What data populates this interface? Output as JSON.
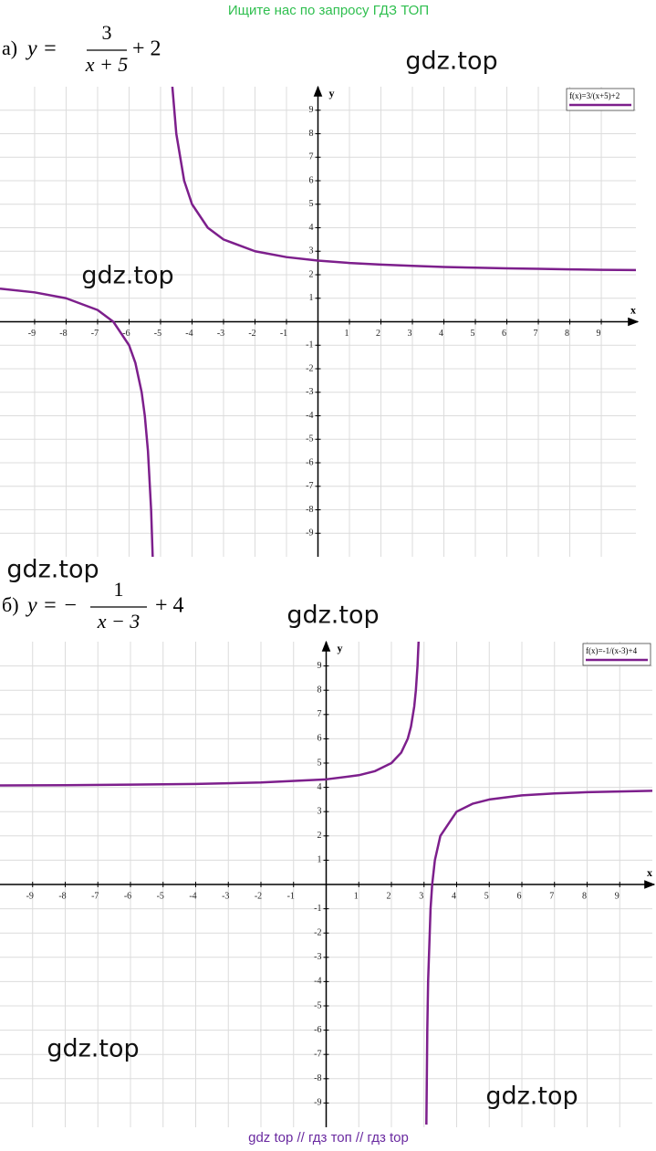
{
  "header": "Ищите нас по запросу ГДЗ ТОП",
  "footer": "gdz top  //  гдз топ  //  гдз top",
  "watermarks": [
    "gdz.top",
    "gdz.top",
    "gdz.top",
    "gdz.top",
    "gdz.top",
    "gdz.top"
  ],
  "chart_data": [
    {
      "type": "line",
      "label": "а)",
      "formula_prefix": "y =",
      "numerator": "3",
      "denominator": "x + 5",
      "formula_suffix": "+ 2",
      "x_label": "x",
      "y_label": "y",
      "xlim": [
        -10.1,
        10.1
      ],
      "ylim": [
        -10,
        10
      ],
      "xticks": [
        -9,
        -8,
        -7,
        -6,
        -5,
        -4,
        -3,
        -2,
        -1,
        1,
        2,
        3,
        4,
        5,
        6,
        7,
        8,
        9
      ],
      "yticks": [
        -9,
        -8,
        -7,
        -6,
        -5,
        -4,
        -3,
        -2,
        -1,
        1,
        2,
        3,
        4,
        5,
        6,
        7,
        8,
        9
      ],
      "grid": true,
      "legend": "top-right",
      "x": [
        -10.1,
        -9,
        -8,
        -7,
        -6.5,
        -6,
        -5.8,
        -5.6,
        -5.5,
        -5.4,
        -5.3,
        -5.25,
        -5,
        -4.625,
        -4.5,
        -4.25,
        -4,
        -3.5,
        -3,
        -2,
        -1,
        0,
        1,
        2,
        3,
        4,
        5,
        6,
        7,
        8,
        9,
        10.1
      ],
      "series": [
        {
          "name": "f(x)=3/(x+5)+2",
          "color": "#7d1f8c",
          "values": [
            1.41,
            1.25,
            1,
            0.5,
            0,
            -1,
            -1.75,
            -3,
            -4,
            -5.5,
            -8,
            -10,
            null,
            10,
            8,
            6,
            5,
            4,
            3.5,
            3,
            2.75,
            2.6,
            2.5,
            2.43,
            2.38,
            2.33,
            2.3,
            2.27,
            2.25,
            2.23,
            2.21,
            2.2
          ]
        }
      ]
    },
    {
      "type": "line",
      "label": "б)",
      "formula_prefix": "y = −",
      "numerator": "1",
      "denominator": "x − 3",
      "formula_suffix": "+ 4",
      "x_label": "x",
      "y_label": "y",
      "xlim": [
        -10,
        10
      ],
      "ylim": [
        -10,
        10
      ],
      "xticks": [
        -9,
        -8,
        -7,
        -6,
        -5,
        -4,
        -3,
        -2,
        -1,
        1,
        2,
        3,
        4,
        5,
        6,
        7,
        8,
        9
      ],
      "yticks": [
        -9,
        -8,
        -7,
        -6,
        -5,
        -4,
        -3,
        -2,
        -1,
        1,
        2,
        3,
        4,
        5,
        6,
        7,
        8,
        9
      ],
      "grid": true,
      "legend": "top-right",
      "x": [
        -10,
        -8,
        -6,
        -4,
        -2,
        0,
        1,
        1.5,
        2,
        2.3,
        2.5,
        2.6,
        2.7,
        2.75,
        2.8,
        2.833,
        3,
        3.072,
        3.1,
        3.125,
        3.2,
        3.25,
        3.333,
        3.5,
        4,
        4.5,
        5,
        6,
        7,
        8,
        9,
        10
      ],
      "series": [
        {
          "name": "f(x)=-1/(x-3)+4",
          "color": "#7d1f8c",
          "values": [
            4.08,
            4.09,
            4.11,
            4.14,
            4.2,
            4.33,
            4.5,
            4.67,
            5,
            5.43,
            6,
            6.5,
            7.33,
            8,
            9,
            10,
            null,
            -9.89,
            -6,
            -4,
            -1,
            0,
            1,
            2,
            3,
            3.33,
            3.5,
            3.67,
            3.75,
            3.8,
            3.83,
            3.86
          ]
        }
      ]
    }
  ]
}
